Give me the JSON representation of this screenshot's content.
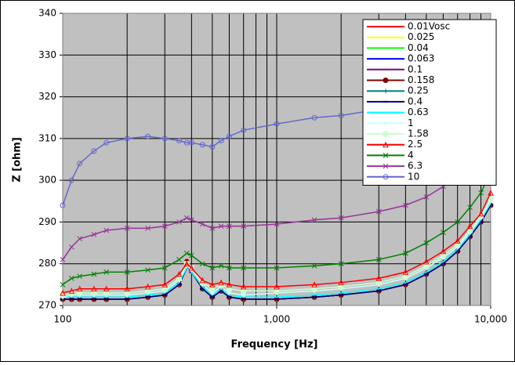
{
  "chart_data": {
    "type": "line",
    "x_label": "Frequency [Hz]",
    "y_label": "Z [ohm]",
    "log_x": true,
    "grid": true,
    "legend": "upper right",
    "background": "#c0c0c0",
    "xlim": [
      100,
      10000
    ],
    "xticks": [
      100,
      {
        "value": 1000,
        "label": "1,000"
      },
      {
        "value": 10000,
        "label": "10,000"
      }
    ],
    "xminorticks": [
      200,
      300,
      400,
      500,
      600,
      700,
      800,
      900,
      2000,
      3000,
      4000,
      5000,
      6000,
      7000,
      8000,
      9000
    ],
    "ylim": [
      270,
      340
    ],
    "yticks": [
      270,
      280,
      290,
      300,
      310,
      320,
      330,
      340
    ],
    "x": [
      100,
      110,
      120,
      140,
      160,
      200,
      250,
      300,
      350,
      380,
      400,
      450,
      500,
      550,
      600,
      700,
      1000,
      1500,
      2000,
      3000,
      4000,
      5000,
      6000,
      7000,
      8000,
      9000,
      10000
    ],
    "series": [
      {
        "name": "0.01Vosc",
        "color": "#ff0000",
        "marker": "none",
        "values": [
          271.5,
          271.5,
          271.5,
          271.5,
          271.5,
          271.5,
          272,
          272.5,
          275,
          279,
          278,
          274,
          272,
          273.5,
          272,
          271.5,
          271.5,
          272,
          272.5,
          273.5,
          275,
          277.5,
          280,
          283,
          286.5,
          290,
          294
        ]
      },
      {
        "name": "0.025",
        "color": "#ffff00",
        "marker": "none",
        "values": [
          271.5,
          271.5,
          271.5,
          271.5,
          271.5,
          271.5,
          272,
          272.5,
          275,
          279,
          278,
          274,
          272,
          273.5,
          272,
          271.5,
          271.5,
          272,
          272.5,
          273.5,
          275,
          277.5,
          280,
          283,
          286.5,
          290,
          294
        ]
      },
      {
        "name": "0.04",
        "color": "#00ff00",
        "marker": "none",
        "values": [
          271.5,
          271.5,
          271.5,
          271.5,
          271.5,
          271.5,
          272,
          272.5,
          275,
          279,
          278,
          274,
          272,
          273.5,
          272,
          271.5,
          271.5,
          272,
          272.5,
          273.5,
          275,
          277.5,
          280,
          283,
          286.5,
          290,
          294
        ]
      },
      {
        "name": "0.063",
        "color": "#0000ff",
        "marker": "none",
        "values": [
          271.5,
          271.5,
          271.5,
          271.5,
          271.5,
          271.5,
          272,
          272.5,
          275,
          279,
          278,
          274,
          272,
          273.5,
          272,
          271.5,
          271.5,
          272,
          272.5,
          273.5,
          275,
          277.5,
          280,
          283,
          286.5,
          290,
          294
        ]
      },
      {
        "name": "0.1",
        "color": "#800080",
        "marker": "none",
        "values": [
          271.5,
          271.5,
          271.5,
          271.5,
          271.5,
          271.5,
          272,
          272.5,
          275,
          279,
          278,
          274,
          272,
          273.5,
          272,
          271.5,
          271.5,
          272,
          272.5,
          273.5,
          275,
          277.5,
          280,
          283,
          286.5,
          290,
          294
        ]
      },
      {
        "name": "0.158",
        "color": "#800000",
        "marker": "circle",
        "values": [
          271.5,
          271.5,
          271.5,
          271.5,
          271.5,
          271.5,
          272,
          272.5,
          275,
          280.5,
          279,
          274,
          272,
          273.5,
          272,
          271.5,
          271.5,
          272,
          272.5,
          273.5,
          275,
          277.5,
          280,
          283,
          286.5,
          290,
          294
        ]
      },
      {
        "name": "0.25",
        "color": "#008080",
        "marker": "plus",
        "values": [
          271.5,
          271.5,
          271.5,
          271.5,
          271.5,
          271.5,
          272,
          272.5,
          275,
          279,
          278,
          274,
          272,
          273.5,
          272,
          271.5,
          271.5,
          272,
          272.5,
          273.5,
          275,
          277.5,
          280,
          283,
          286.5,
          290,
          294
        ]
      },
      {
        "name": "0.4",
        "color": "#000080",
        "marker": "dash",
        "values": [
          271.5,
          271.5,
          271.5,
          271.5,
          271.5,
          271.5,
          272,
          272.5,
          275,
          279,
          278,
          274,
          272,
          273.5,
          272,
          271.5,
          271.5,
          272,
          272.5,
          273.5,
          275,
          277.5,
          280,
          283,
          286.5,
          290,
          294
        ]
      },
      {
        "name": "0.63",
        "color": "#00ffff",
        "marker": "none",
        "values": [
          272,
          272,
          272,
          272,
          272,
          272,
          272.5,
          273,
          275.5,
          279,
          278,
          274.5,
          272.5,
          274,
          272.5,
          272,
          272,
          272.5,
          273,
          274,
          275.5,
          278,
          280.5,
          283.5,
          287,
          290.5,
          294.5
        ]
      },
      {
        "name": "1",
        "color": "#ccffff",
        "marker": "diamond",
        "values": [
          272,
          272.5,
          272.5,
          272.5,
          272.5,
          272.5,
          273,
          273.5,
          276,
          279.5,
          278.5,
          275,
          273,
          274.5,
          273,
          272.5,
          273,
          273.5,
          274,
          275,
          276.5,
          279,
          281.5,
          284,
          287.5,
          291,
          295
        ]
      },
      {
        "name": "1.58",
        "color": "#ccffcc",
        "marker": "square",
        "values": [
          272.5,
          273,
          273,
          273,
          273,
          273,
          273.5,
          274,
          276.5,
          280,
          279,
          275.5,
          274,
          275,
          274,
          273.5,
          273.5,
          274,
          274.5,
          275.5,
          277,
          279.5,
          282,
          284.5,
          288,
          291.5,
          295.5
        ]
      },
      {
        "name": "2.5",
        "color": "#ff0000",
        "marker": "triangle",
        "values": [
          273,
          273.5,
          274,
          274,
          274,
          274,
          274.5,
          275,
          277.5,
          280,
          279,
          276,
          275,
          275.5,
          275,
          274.5,
          274.5,
          275,
          275.5,
          276.5,
          278,
          280.5,
          283,
          285.5,
          289,
          292,
          297
        ]
      },
      {
        "name": "4",
        "color": "#008000",
        "marker": "x",
        "values": [
          275,
          276.5,
          277,
          277.5,
          278,
          278,
          278.5,
          279,
          281,
          282.5,
          282,
          280,
          279,
          279.5,
          279,
          279,
          279,
          279.5,
          280,
          281,
          282.5,
          285,
          287.5,
          290,
          293.5,
          297,
          302
        ]
      },
      {
        "name": "6.3",
        "color": "#993399",
        "marker": "x",
        "values": [
          281,
          284,
          286,
          287,
          288,
          288.5,
          288.5,
          289,
          290,
          291,
          290.5,
          289.5,
          288.5,
          289,
          289,
          289,
          289.5,
          290.5,
          291,
          292.5,
          294,
          296,
          298.5,
          301,
          305,
          308,
          312.5
        ]
      },
      {
        "name": "10",
        "color": "#6666cc",
        "marker": "circle",
        "values": [
          294,
          300,
          304,
          307,
          309,
          310,
          310.5,
          310,
          309.5,
          309,
          309,
          308.5,
          308,
          309.5,
          310.5,
          312,
          313.5,
          315,
          315.5,
          317,
          318,
          320,
          322,
          325,
          329,
          332,
          336.5
        ]
      }
    ]
  }
}
